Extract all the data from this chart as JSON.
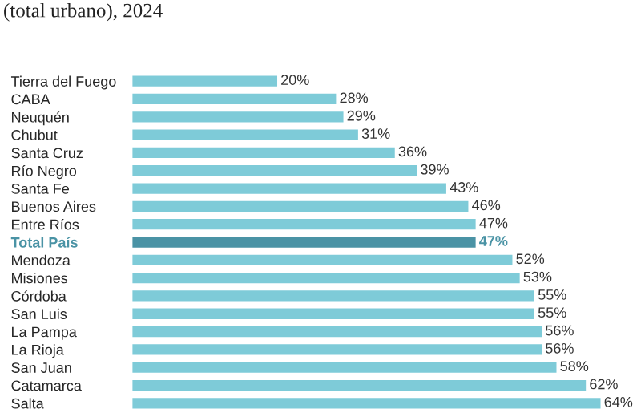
{
  "chart_data": {
    "type": "bar",
    "orientation": "horizontal",
    "title": "(total urbano), 2024",
    "categories": [
      "Tierra del Fuego",
      "CABA",
      "Neuquén",
      "Chubut",
      "Santa Cruz",
      "Río Negro",
      "Santa Fe",
      "Buenos Aires",
      "Entre Ríos",
      "Total País",
      "Mendoza",
      "Misiones",
      "Córdoba",
      "San Luis",
      "La Pampa",
      "La Rioja",
      "San Juan",
      "Catamarca",
      "Salta"
    ],
    "values": [
      20,
      28,
      29,
      31,
      36,
      39,
      43,
      46,
      47,
      47,
      52,
      53,
      55,
      55,
      56,
      56,
      58,
      62,
      64
    ],
    "value_labels": [
      "20%",
      "28%",
      "29%",
      "31%",
      "36%",
      "39%",
      "43%",
      "46%",
      "47%",
      "47%",
      "52%",
      "53%",
      "55%",
      "55%",
      "56%",
      "56%",
      "58%",
      "62%",
      "64%"
    ],
    "colors": [
      "#7ecbd8",
      "#7ecbd8",
      "#7ecbd8",
      "#7ecbd8",
      "#7ecbd8",
      "#7ecbd8",
      "#7ecbd8",
      "#7ecbd8",
      "#7ecbd8",
      "#4a93a5",
      "#7ecbd8",
      "#7ecbd8",
      "#7ecbd8",
      "#7ecbd8",
      "#7ecbd8",
      "#7ecbd8",
      "#7ecbd8",
      "#7ecbd8",
      "#7ecbd8"
    ],
    "grid": false,
    "legend": false
  }
}
